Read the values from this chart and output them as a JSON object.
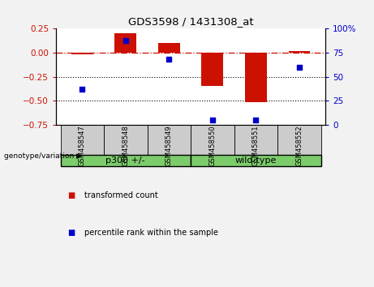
{
  "title": "GDS3598 / 1431308_at",
  "categories": [
    "GSM458547",
    "GSM458548",
    "GSM458549",
    "GSM458550",
    "GSM458551",
    "GSM458552"
  ],
  "red_values": [
    -0.02,
    0.2,
    0.1,
    -0.35,
    -0.52,
    0.02
  ],
  "blue_values": [
    37,
    88,
    68,
    5,
    5,
    60
  ],
  "ylim_left": [
    -0.75,
    0.25
  ],
  "ylim_right": [
    0,
    100
  ],
  "yticks_left": [
    -0.75,
    -0.5,
    -0.25,
    0,
    0.25
  ],
  "yticks_right": [
    0,
    25,
    50,
    75,
    100
  ],
  "ytick_labels_right": [
    "0",
    "25",
    "50",
    "75",
    "100%"
  ],
  "hlines_dotted": [
    -0.25,
    -0.5
  ],
  "group1": {
    "label": "p300 +/-",
    "color": "#7CCC6C"
  },
  "group2": {
    "label": "wild-type",
    "color": "#7CCC6C"
  },
  "genotype_label": "genotype/variation",
  "legend_red": "transformed count",
  "legend_blue": "percentile rank within the sample",
  "bar_color": "#CC1100",
  "dot_color": "#0000CC",
  "background_color": "#F2F2F2",
  "plot_bg": "#FFFFFF",
  "label_cell_color": "#CCCCCC",
  "bar_width": 0.5
}
